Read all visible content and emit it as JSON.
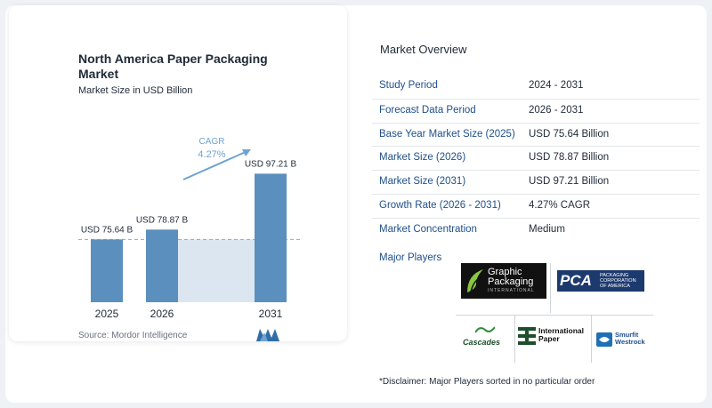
{
  "chart": {
    "title": "North America Paper Packaging Market",
    "subtitle": "Market Size in USD Billion",
    "source": "Source: Mordor Intelligence",
    "cagr_label": "CAGR",
    "cagr_value": "4.27%"
  },
  "chart_data": {
    "type": "bar",
    "categories": [
      "2025",
      "2026",
      "2031"
    ],
    "values": [
      75.64,
      78.87,
      97.21
    ],
    "data_labels": [
      "USD 75.64 B",
      "USD 78.87 B",
      "USD 97.21 B"
    ],
    "title": "North America Paper Packaging Market",
    "subtitle": "Market Size in USD Billion",
    "annotations": [
      "CAGR",
      "4.27%"
    ],
    "colors": {
      "bar": "#5b8fbe",
      "band": "#dbe6f0",
      "arrow": "#6fa3d1",
      "dashed": "#9aa6b2"
    }
  },
  "overview": {
    "title": "Market Overview",
    "rows": [
      {
        "label": "Study Period",
        "value": "2024 - 2031"
      },
      {
        "label": "Forecast Data Period",
        "value": "2026 - 2031"
      },
      {
        "label": "Base Year Market Size (2025)",
        "value": "USD 75.64 Billion"
      },
      {
        "label": "Market Size (2026)",
        "value": "USD 78.87 Billion"
      },
      {
        "label": "Market Size (2031)",
        "value": "USD 97.21 Billion"
      },
      {
        "label": "Growth Rate (2026 - 2031)",
        "value": "4.27% CAGR"
      },
      {
        "label": "Market Concentration",
        "value": "Medium"
      }
    ],
    "major_players_label": "Major Players",
    "disclaimer": "*Disclaimer: Major Players sorted in no particular order"
  },
  "players": {
    "graphic_packaging": {
      "line1": "Graphic",
      "line2": "Packaging",
      "line3": "INTERNATIONAL"
    },
    "pca": {
      "mark": "PCA",
      "line1": "PACKAGING",
      "line2": "CORPORATION",
      "line3": "OF AMERICA"
    },
    "cascades": {
      "name": "Cascades"
    },
    "international_paper": {
      "line1": "International",
      "line2": "Paper"
    },
    "smurfit": {
      "line1": "Smurfit",
      "line2": "Westrock"
    }
  }
}
